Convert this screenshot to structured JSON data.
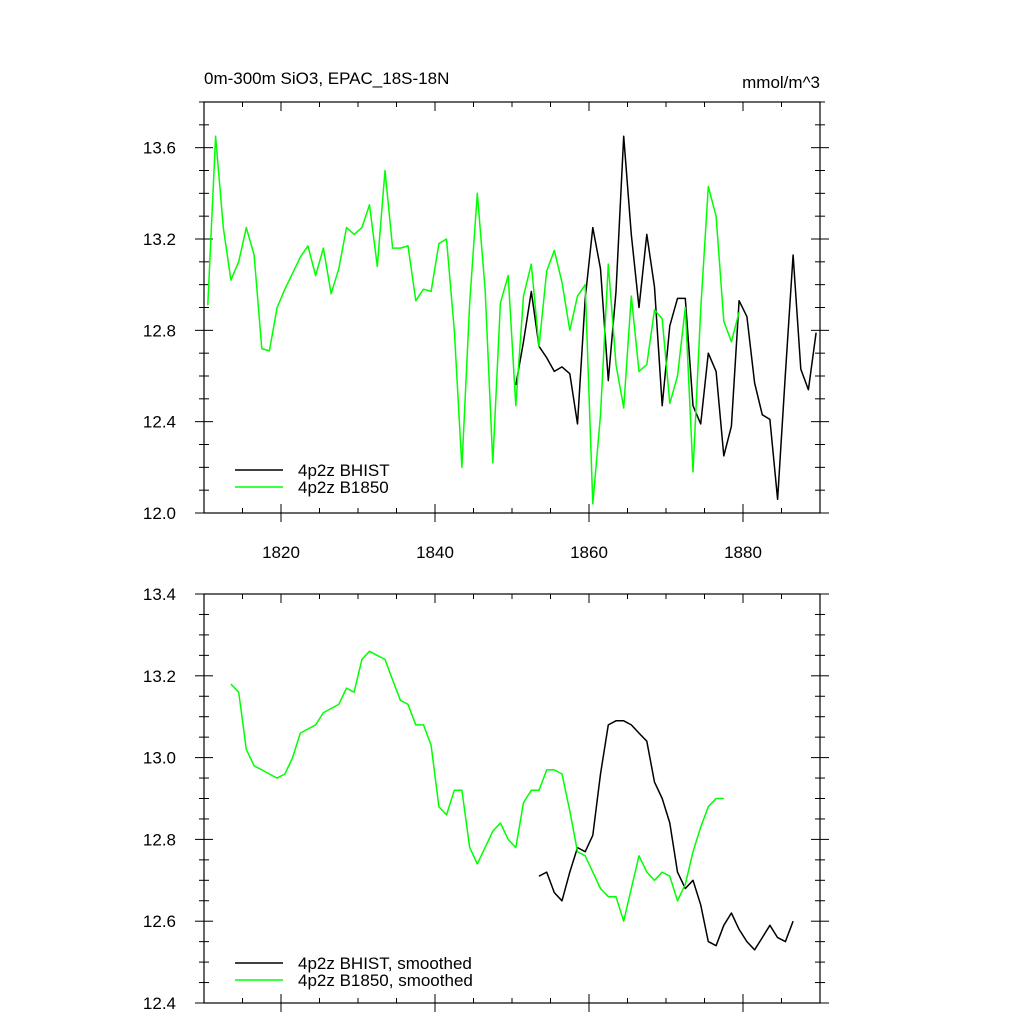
{
  "colors": {
    "black_series": "#000000",
    "green_series": "#00ff00",
    "axis": "#000000",
    "background": "#ffffff"
  },
  "chart_data": [
    {
      "type": "line",
      "title": "0m-300m SiO3, EPAC_18S-18N",
      "units": "mmol/m^3",
      "xlabel": "",
      "ylabel": "",
      "xlim": [
        1810,
        1890
      ],
      "ylim": [
        12.0,
        13.8
      ],
      "x_ticks": [
        1820,
        1840,
        1860,
        1880
      ],
      "y_ticks": [
        12.0,
        12.4,
        12.8,
        13.2,
        13.6
      ],
      "x_tick_labels": [
        "1820",
        "1840",
        "1860",
        "1880"
      ],
      "y_tick_labels": [
        "12.0",
        "12.4",
        "12.8",
        "13.2",
        "13.6"
      ],
      "grid": false,
      "legend_position": "bottom-left",
      "series": [
        {
          "name": "4p2z BHIST",
          "color": "#000000",
          "x_start": 1850.5,
          "x_step": 1,
          "values": [
            12.56,
            12.75,
            12.97,
            12.73,
            12.68,
            12.62,
            12.64,
            12.61,
            12.39,
            12.94,
            13.25,
            13.07,
            12.58,
            12.97,
            13.65,
            13.22,
            12.9,
            13.22,
            12.99,
            12.47,
            12.82,
            12.94,
            12.94,
            12.47,
            12.39,
            12.7,
            12.62,
            12.25,
            12.38,
            12.93,
            12.86,
            12.57,
            12.43,
            12.41,
            12.06,
            12.61,
            13.13,
            12.63,
            12.54,
            12.79
          ]
        },
        {
          "name": "4p2z B1850",
          "color": "#00ff00",
          "x_start": 1810.5,
          "x_step": 1,
          "values": [
            12.91,
            13.65,
            13.25,
            13.02,
            13.1,
            13.25,
            13.13,
            12.72,
            12.71,
            12.9,
            12.98,
            13.05,
            13.12,
            13.17,
            13.04,
            13.16,
            12.96,
            13.07,
            13.25,
            13.22,
            13.25,
            13.35,
            13.08,
            13.5,
            13.16,
            13.16,
            13.17,
            12.93,
            12.98,
            12.97,
            13.18,
            13.2,
            12.8,
            12.2,
            12.92,
            13.4,
            12.98,
            12.22,
            12.92,
            13.04,
            12.47,
            12.95,
            13.09,
            12.73,
            13.06,
            13.15,
            13.01,
            12.8,
            12.95,
            13.0,
            12.04,
            12.43,
            13.09,
            12.65,
            12.46,
            12.95,
            12.62,
            12.65,
            12.89,
            12.85,
            12.48,
            12.6,
            12.9,
            12.18,
            12.89,
            13.43,
            13.3,
            12.84,
            12.75,
            12.88
          ]
        }
      ]
    },
    {
      "type": "line",
      "title": "",
      "xlabel": "",
      "ylabel": "",
      "xlim": [
        1810,
        1890
      ],
      "ylim": [
        12.4,
        13.4
      ],
      "x_ticks": [
        1820,
        1840,
        1860,
        1880
      ],
      "y_ticks": [
        12.4,
        12.6,
        12.8,
        13.0,
        13.2,
        13.4
      ],
      "y_tick_labels": [
        "12.4",
        "12.6",
        "12.8",
        "13.0",
        "13.2",
        "13.4"
      ],
      "grid": false,
      "legend_position": "bottom-left",
      "series": [
        {
          "name": "4p2z BHIST, smoothed",
          "color": "#000000",
          "x_start": 1853.5,
          "x_step": 1,
          "values": [
            12.71,
            12.72,
            12.67,
            12.65,
            12.72,
            12.78,
            12.77,
            12.81,
            12.96,
            13.08,
            13.09,
            13.09,
            13.08,
            13.06,
            13.04,
            12.94,
            12.9,
            12.84,
            12.72,
            12.68,
            12.7,
            12.64,
            12.55,
            12.54,
            12.59,
            12.62,
            12.58,
            12.55,
            12.53,
            12.56,
            12.59,
            12.56,
            12.55,
            12.6
          ]
        },
        {
          "name": "4p2z B1850, smoothed",
          "color": "#00ff00",
          "x_start": 1813.5,
          "x_step": 1,
          "values": [
            13.18,
            13.16,
            13.02,
            12.98,
            12.97,
            12.96,
            12.95,
            12.96,
            13.0,
            13.06,
            13.07,
            13.08,
            13.11,
            13.12,
            13.13,
            13.17,
            13.16,
            13.24,
            13.26,
            13.25,
            13.24,
            13.19,
            13.14,
            13.13,
            13.08,
            13.08,
            13.03,
            12.88,
            12.86,
            12.92,
            12.92,
            12.78,
            12.74,
            12.78,
            12.82,
            12.84,
            12.8,
            12.78,
            12.89,
            12.92,
            12.92,
            12.97,
            12.97,
            12.96,
            12.87,
            12.77,
            12.76,
            12.72,
            12.68,
            12.66,
            12.66,
            12.6,
            12.68,
            12.76,
            12.72,
            12.7,
            12.72,
            12.71,
            12.65,
            12.69,
            12.77,
            12.83,
            12.88,
            12.9,
            12.9
          ]
        }
      ]
    }
  ]
}
